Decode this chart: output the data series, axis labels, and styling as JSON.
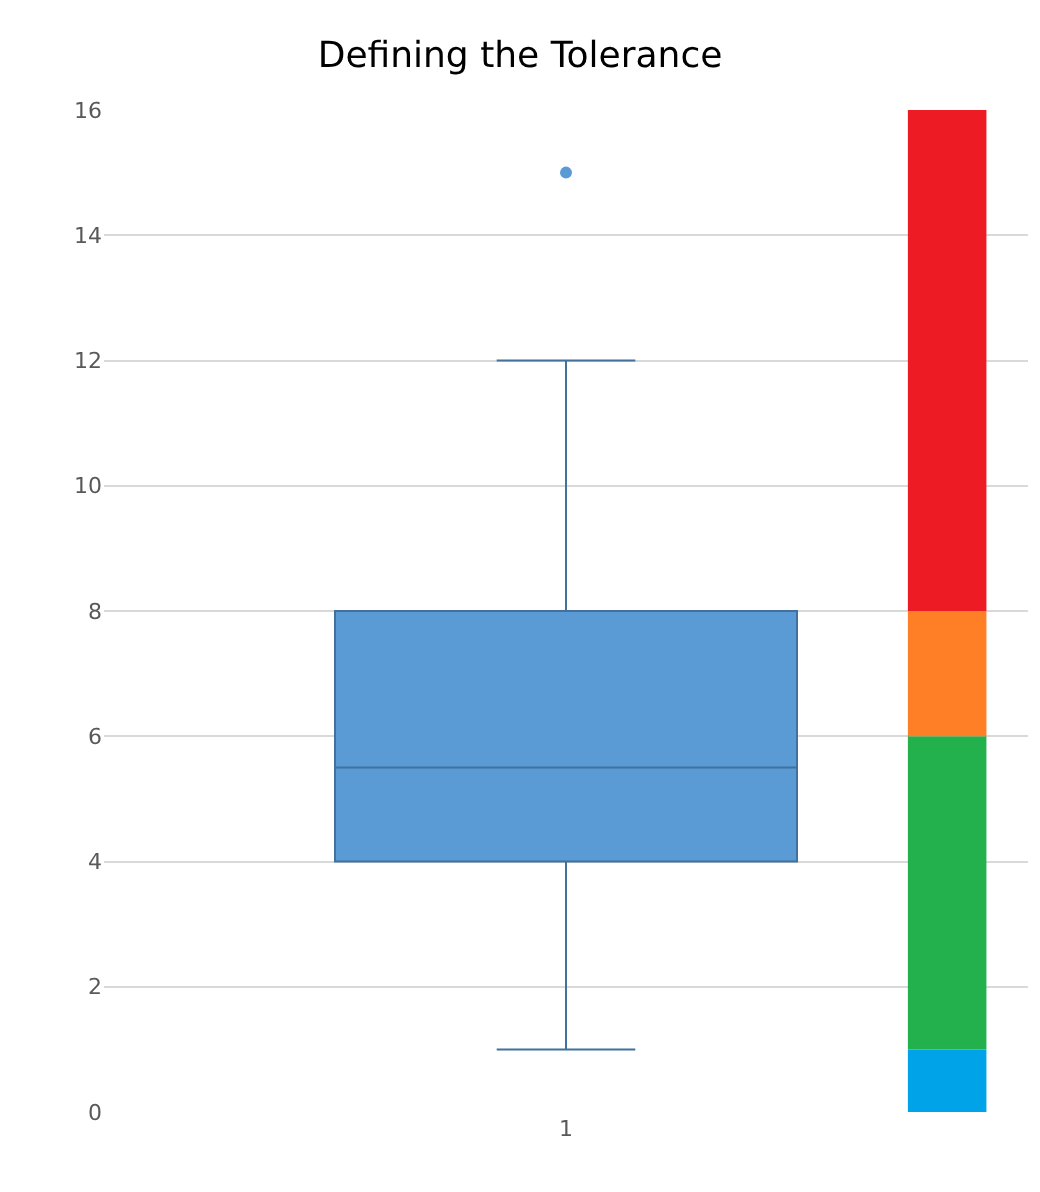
{
  "chart_data": {
    "type": "box",
    "title": "Defining the Tolerance",
    "categories": [
      "1"
    ],
    "ylim": [
      0,
      16
    ],
    "yticks": [
      0,
      2,
      4,
      6,
      8,
      10,
      12,
      14,
      16
    ],
    "grid": "y",
    "legend": false,
    "marker": "circle",
    "color": "#5b9bd5",
    "boxes": [
      {
        "low": 1,
        "q1": 4,
        "median": 5.5,
        "q3": 8,
        "high": 12,
        "outliers": [
          15
        ]
      }
    ],
    "bands": [
      {
        "axis": "y",
        "from": 0,
        "to": 1,
        "color": "#00a2e8"
      },
      {
        "axis": "y",
        "from": 1,
        "to": 6,
        "color": "#22b14c"
      },
      {
        "axis": "y",
        "from": 6,
        "to": 8,
        "color": "#ff7f27"
      },
      {
        "axis": "y",
        "from": 8,
        "to": 16,
        "color": "#ed1c24"
      }
    ]
  }
}
